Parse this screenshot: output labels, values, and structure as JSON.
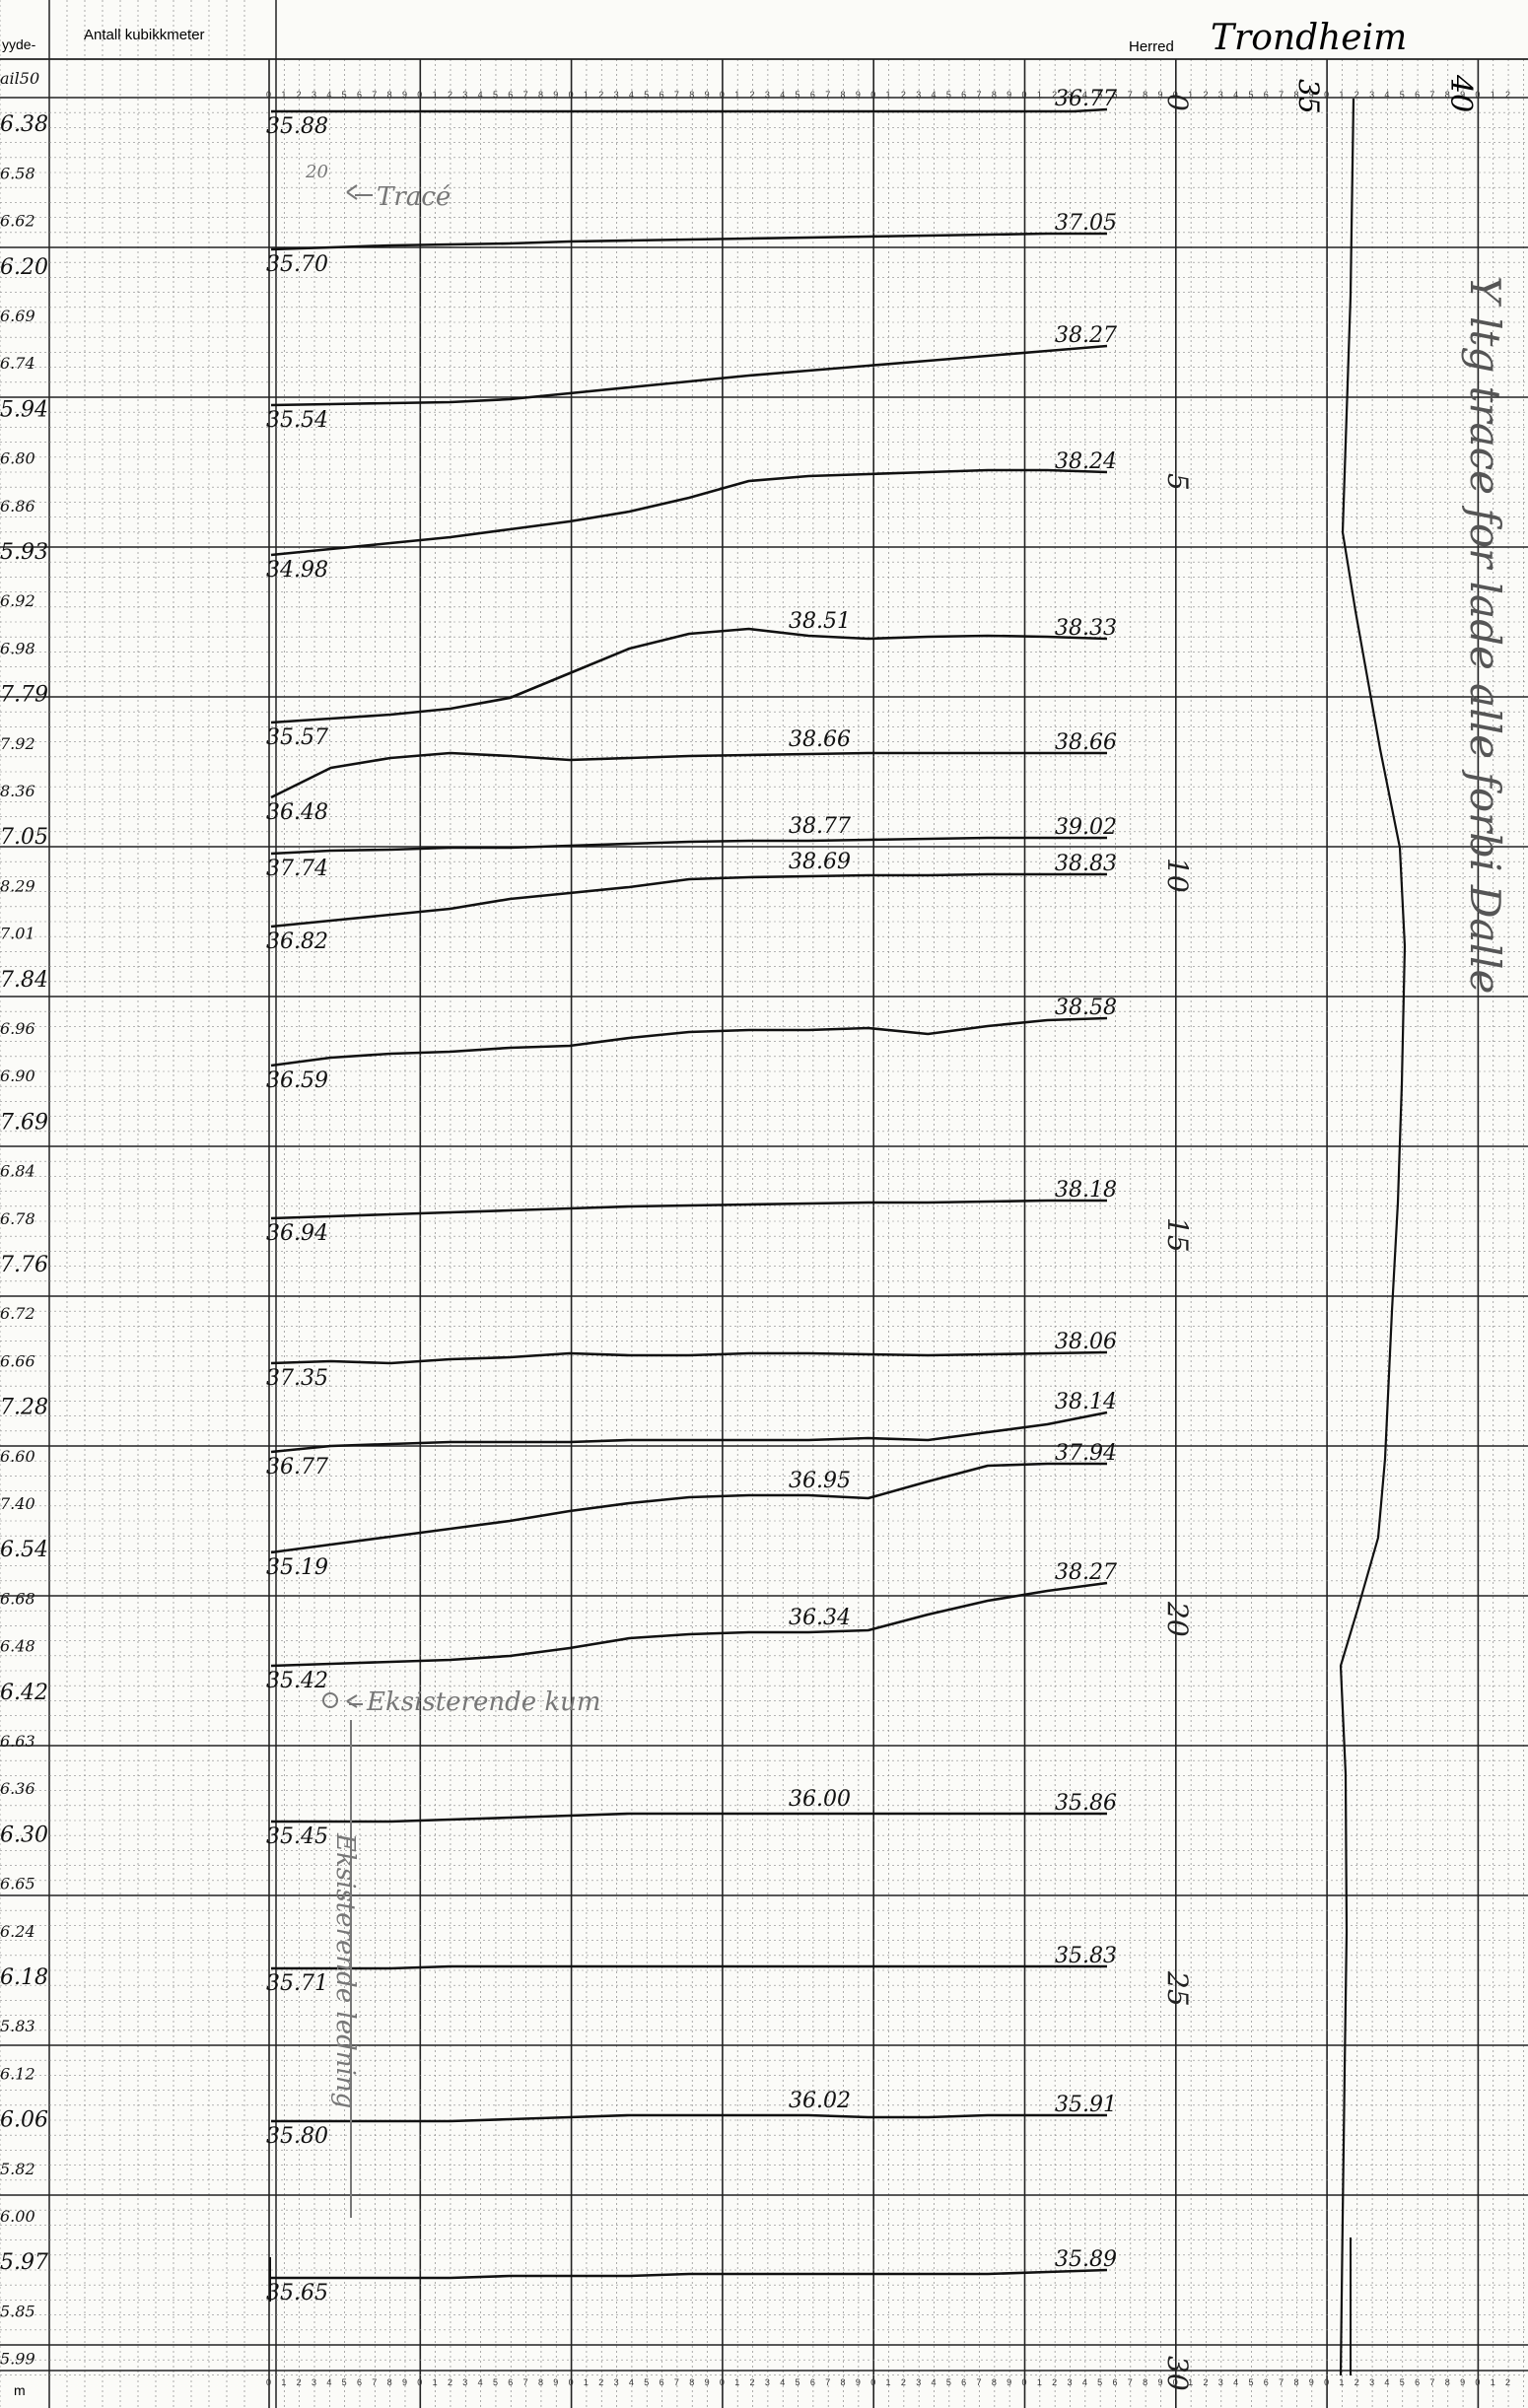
{
  "header": {
    "col_height_label": "yyde-",
    "volume_label": "Antall kubikkmeter",
    "district_label": "Herred",
    "district_value": "Trondheim",
    "scale_left": "35",
    "scale_right": "40",
    "unit_label": "m"
  },
  "left_column": [
    "ail50",
    "6.38",
    "6.58",
    "6.62",
    "6.20",
    "6.69",
    "6.74",
    "5.94",
    "6.80",
    "6.86",
    "5.93",
    "6.92",
    "6.98",
    "7.79",
    "7.92",
    "8.36",
    "7.05",
    "8.29",
    "7.01",
    "7.84",
    "6.96",
    "6.90",
    "7.69",
    "6.84",
    "6.78",
    "7.76",
    "6.72",
    "6.66",
    "7.28",
    "6.60",
    "7.40",
    "6.54",
    "6.68",
    "6.48",
    "6.42",
    "6.63",
    "6.36",
    "6.30",
    "6.65",
    "6.24",
    "6.18",
    "5.83",
    "6.12",
    "6.06",
    "5.82",
    "6.00",
    "5.97",
    "5.85",
    "5.99"
  ],
  "annotations": {
    "trace_label": "Tracé",
    "trace_depth": "20",
    "sand_label": "Eksisterende kum",
    "pipe_label": "Eksisterende ledning",
    "vertical_note": "Y ltg trace for lade alle forbi Dalle",
    "station_marks": [
      "0",
      "5",
      "10",
      "15",
      "20",
      "25",
      "30"
    ]
  },
  "profiles": [
    {
      "start": "35.88",
      "end": "36.77",
      "mid": ""
    },
    {
      "start": "35.70",
      "end": "37.05",
      "mid": ""
    },
    {
      "start": "35.54",
      "end": "38.27",
      "mid": ""
    },
    {
      "start": "34.98",
      "end": "38.24",
      "mid": ""
    },
    {
      "start": "35.57",
      "end": "38.33",
      "mid": "38.51"
    },
    {
      "start": "36.48",
      "end": "38.66",
      "mid": "38.66"
    },
    {
      "start": "37.74",
      "end": "39.02",
      "mid": "38.77"
    },
    {
      "start": "36.82",
      "end": "38.83",
      "mid": "38.69"
    },
    {
      "start": "36.59",
      "end": "38.58",
      "mid": ""
    },
    {
      "start": "36.94",
      "end": "38.18",
      "mid": ""
    },
    {
      "start": "37.35",
      "end": "38.06",
      "mid": ""
    },
    {
      "start": "36.77",
      "end": "38.14",
      "mid": ""
    },
    {
      "start": "35.19",
      "end": "37.94",
      "mid": "36.95"
    },
    {
      "start": "35.42",
      "end": "38.27",
      "mid": "36.34"
    },
    {
      "start": "35.45",
      "end": "35.86",
      "mid": "36.00"
    },
    {
      "start": "35.71",
      "end": "35.83",
      "mid": ""
    },
    {
      "start": "35.80",
      "end": "35.91",
      "mid": "36.02"
    },
    {
      "start": "35.65",
      "end": "35.89",
      "mid": ""
    }
  ],
  "colors": {
    "paper": "#fbfbf8",
    "minor_grid": "#8a8a8a",
    "major_grid": "#222222",
    "ink": "#111111",
    "pencil": "#777777"
  }
}
